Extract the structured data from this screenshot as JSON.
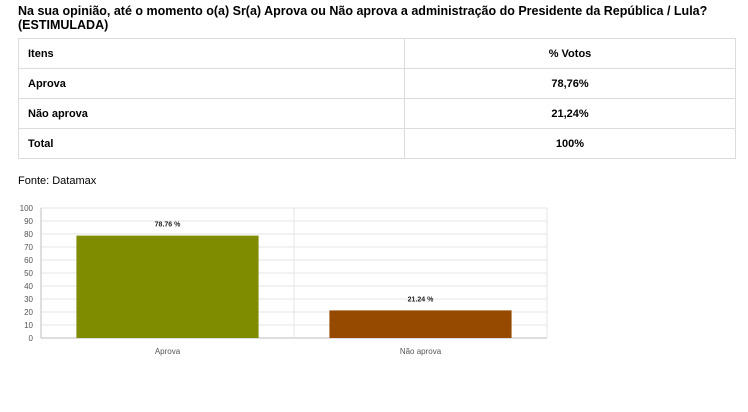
{
  "question": "Na sua opinião, até o momento o(a) Sr(a) Aprova ou Não aprova a administração do Presidente da República / Lula? (ESTIMULADA)",
  "table": {
    "headers": [
      "Itens",
      "% Votos"
    ],
    "rows": [
      {
        "item": "Aprova",
        "value": "78,76%"
      },
      {
        "item": "Não aprova",
        "value": "21,24%"
      },
      {
        "item": "Total",
        "value": "100%"
      }
    ]
  },
  "source": "Fonte: Datamax",
  "chart_data": {
    "type": "bar",
    "categories": [
      "Aprova",
      "Não aprova"
    ],
    "values": [
      78.76,
      21.24
    ],
    "data_labels": [
      "78.76 %",
      "21.24 %"
    ],
    "colors": [
      "#808c00",
      "#964a00"
    ],
    "ylim": [
      0,
      100
    ],
    "yticks": [
      0,
      10,
      20,
      30,
      40,
      50,
      60,
      70,
      80,
      90,
      100
    ],
    "grid": true
  }
}
